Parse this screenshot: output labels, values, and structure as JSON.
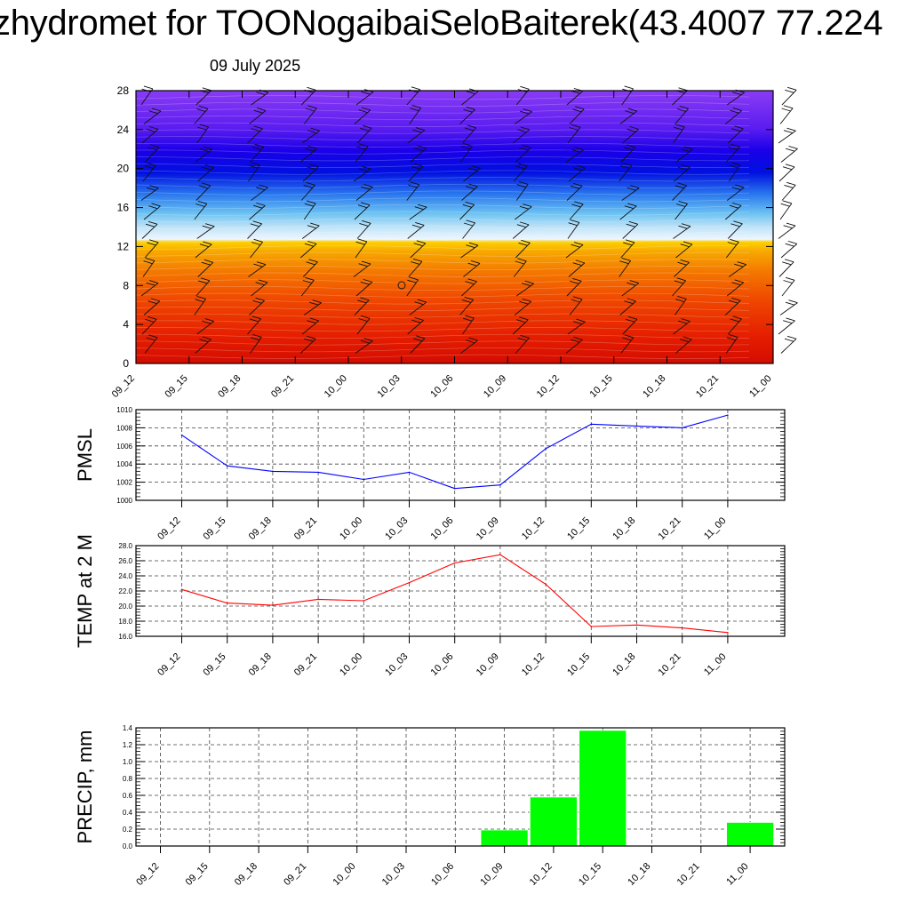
{
  "header": {
    "title": "zhydromet for TOONogaibaiSeloBaiterek(43.4007 77.224",
    "date": "09 July 2025"
  },
  "chart_data": [
    {
      "type": "heatmap",
      "description_note": "",
      "x": [
        "09_12",
        "09_15",
        "09_18",
        "09_21",
        "10_00",
        "10_03",
        "10_06",
        "10_09",
        "10_12",
        "10_15",
        "10_18",
        "10_21",
        "11_00"
      ],
      "yticks": [
        0,
        4,
        8,
        12,
        16,
        20,
        24,
        28
      ],
      "ylim": [
        0,
        28
      ],
      "colors": {
        "warm_top": "#f5a300",
        "hot": "#e21a00",
        "cold": "#8a3cf0",
        "mid": "#0000e6",
        "light": "#c8e6f8"
      }
    },
    {
      "type": "line",
      "ylabel": "PMSL",
      "color": "#0000ff",
      "x": [
        "09_12",
        "09_15",
        "09_18",
        "09_21",
        "10_00",
        "10_03",
        "10_06",
        "10_09",
        "10_12",
        "10_15",
        "10_18",
        "10_21",
        "11_00"
      ],
      "values": [
        1007.2,
        1003.8,
        1003.2,
        1003.1,
        1002.3,
        1003.1,
        1001.3,
        1001.7,
        1005.7,
        1008.4,
        1008.2,
        1008.0,
        1009.4
      ],
      "yticks": [
        "1000",
        "1002",
        "1004",
        "1006",
        "1008",
        "1010"
      ],
      "ylim": [
        1000,
        1010
      ]
    },
    {
      "type": "line",
      "ylabel": "TEMP at 2 M",
      "color": "#ff0000",
      "x": [
        "09_12",
        "09_15",
        "09_18",
        "09_21",
        "10_00",
        "10_03",
        "10_06",
        "10_09",
        "10_12",
        "10_15",
        "10_18",
        "10_21",
        "11_00"
      ],
      "values": [
        22.2,
        20.4,
        20.1,
        20.9,
        20.7,
        23.1,
        25.7,
        26.8,
        22.9,
        17.3,
        17.5,
        17.1,
        16.5
      ],
      "yticks": [
        "16.0",
        "18.0",
        "20.0",
        "22.0",
        "24.0",
        "26.0",
        "28.0"
      ],
      "ylim": [
        16,
        28
      ]
    },
    {
      "type": "bar",
      "ylabel": "PRECIP, mm",
      "color": "#00ff00",
      "categories": [
        "09_12",
        "09_15",
        "09_18",
        "09_21",
        "10_00",
        "10_03",
        "10_06",
        "10_09",
        "10_12",
        "10_15",
        "10_18",
        "10_21",
        "11_00"
      ],
      "values": [
        0,
        0,
        0,
        0,
        0,
        0,
        0,
        0.19,
        0.58,
        1.37,
        0,
        0,
        0.28
      ],
      "yticks": [
        "0.0",
        "0.2",
        "0.4",
        "0.6",
        "0.8",
        "1.0",
        "1.2",
        "1.4"
      ],
      "ylim": [
        0,
        1.4
      ]
    }
  ]
}
